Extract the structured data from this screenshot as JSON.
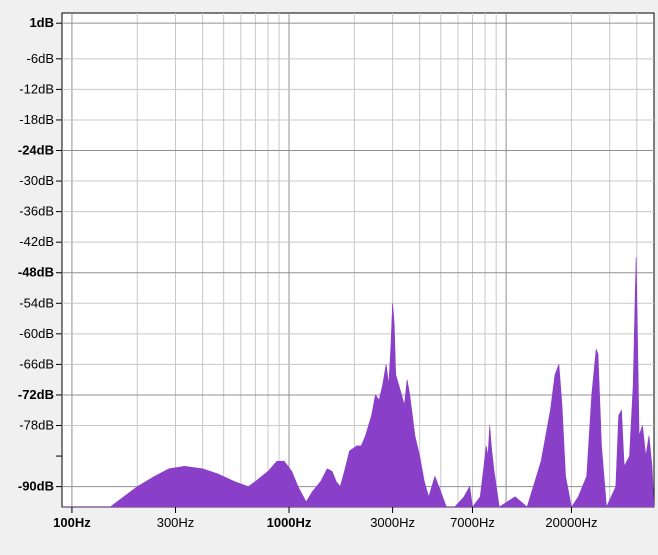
{
  "chart_data": {
    "type": "area",
    "title": "",
    "xlabel": "",
    "ylabel": "",
    "x_scale": "log",
    "xlim_hz": [
      90,
      48000
    ],
    "ylim_db": [
      -94,
      3
    ],
    "grid": true,
    "legend": "none",
    "y_ticks": [
      {
        "value": 1,
        "label": "1dB",
        "bold": true
      },
      {
        "value": -6,
        "label": "-6dB",
        "bold": false
      },
      {
        "value": -12,
        "label": "-12dB",
        "bold": false
      },
      {
        "value": -18,
        "label": "-18dB",
        "bold": false
      },
      {
        "value": -24,
        "label": "-24dB",
        "bold": true
      },
      {
        "value": -30,
        "label": "-30dB",
        "bold": false
      },
      {
        "value": -36,
        "label": "-36dB",
        "bold": false
      },
      {
        "value": -42,
        "label": "-42dB",
        "bold": false
      },
      {
        "value": -48,
        "label": "-48dB",
        "bold": true
      },
      {
        "value": -54,
        "label": "-54dB",
        "bold": false
      },
      {
        "value": -60,
        "label": "-60dB",
        "bold": false
      },
      {
        "value": -66,
        "label": "-66dB",
        "bold": false
      },
      {
        "value": -72,
        "label": "-72dB",
        "bold": true
      },
      {
        "value": -78,
        "label": "-78dB",
        "bold": false
      },
      {
        "value": -90,
        "label": "-90dB",
        "bold": true
      }
    ],
    "x_ticks": [
      {
        "value": 100,
        "label": "100Hz",
        "bold": true
      },
      {
        "value": 300,
        "label": "300Hz",
        "bold": false
      },
      {
        "value": 1000,
        "label": "1000Hz",
        "bold": true
      },
      {
        "value": 3000,
        "label": "3000Hz",
        "bold": false
      },
      {
        "value": 7000,
        "label": "7000Hz",
        "bold": false
      },
      {
        "value": 20000,
        "label": "20000Hz",
        "bold": false
      }
    ],
    "x_grid_hz": [
      200,
      300,
      400,
      500,
      600,
      700,
      800,
      900,
      2000,
      3000,
      4000,
      5000,
      6000,
      7000,
      8000,
      9000,
      20000,
      30000,
      40000
    ],
    "x_grid_major_hz": [
      100,
      1000,
      10000
    ],
    "y_minor_ticks": [
      -84
    ],
    "series": [
      {
        "color": "#8a3fc8",
        "points": [
          [
            90,
            -94
          ],
          [
            150,
            -94
          ],
          [
            200,
            -90
          ],
          [
            240,
            -88
          ],
          [
            280,
            -86.5
          ],
          [
            330,
            -86
          ],
          [
            400,
            -86.5
          ],
          [
            470,
            -87.5
          ],
          [
            560,
            -89
          ],
          [
            650,
            -90
          ],
          [
            700,
            -89
          ],
          [
            800,
            -87
          ],
          [
            880,
            -85
          ],
          [
            950,
            -85
          ],
          [
            1030,
            -87
          ],
          [
            1100,
            -90
          ],
          [
            1200,
            -93
          ],
          [
            1280,
            -91
          ],
          [
            1400,
            -89
          ],
          [
            1500,
            -86.5
          ],
          [
            1580,
            -87
          ],
          [
            1650,
            -89
          ],
          [
            1720,
            -90
          ],
          [
            1800,
            -87
          ],
          [
            1900,
            -83
          ],
          [
            2050,
            -82
          ],
          [
            2150,
            -82
          ],
          [
            2250,
            -80
          ],
          [
            2400,
            -76
          ],
          [
            2500,
            -72
          ],
          [
            2600,
            -73
          ],
          [
            2700,
            -70
          ],
          [
            2800,
            -66
          ],
          [
            2880,
            -70
          ],
          [
            2950,
            -62
          ],
          [
            3000,
            -54
          ],
          [
            3050,
            -58
          ],
          [
            3100,
            -68
          ],
          [
            3200,
            -70
          ],
          [
            3300,
            -72
          ],
          [
            3400,
            -74
          ],
          [
            3500,
            -69
          ],
          [
            3600,
            -72
          ],
          [
            3800,
            -80
          ],
          [
            4000,
            -84
          ],
          [
            4200,
            -89
          ],
          [
            4400,
            -92
          ],
          [
            4700,
            -88
          ],
          [
            5000,
            -91
          ],
          [
            5300,
            -94
          ],
          [
            5800,
            -94
          ],
          [
            6400,
            -92
          ],
          [
            6800,
            -90
          ],
          [
            7000,
            -94
          ],
          [
            7600,
            -92
          ],
          [
            7900,
            -86
          ],
          [
            8100,
            -82
          ],
          [
            8250,
            -84
          ],
          [
            8400,
            -78
          ],
          [
            8550,
            -82
          ],
          [
            8800,
            -87
          ],
          [
            9300,
            -94
          ],
          [
            11000,
            -92
          ],
          [
            12500,
            -94
          ],
          [
            14500,
            -85
          ],
          [
            16000,
            -75
          ],
          [
            16800,
            -68
          ],
          [
            17500,
            -66
          ],
          [
            18100,
            -74
          ],
          [
            18800,
            -88
          ],
          [
            20000,
            -94
          ],
          [
            21500,
            -92
          ],
          [
            23500,
            -88
          ],
          [
            24800,
            -72
          ],
          [
            26000,
            -63
          ],
          [
            26500,
            -64
          ],
          [
            27500,
            -82
          ],
          [
            29000,
            -94
          ],
          [
            32000,
            -90
          ],
          [
            33000,
            -76
          ],
          [
            34000,
            -75
          ],
          [
            35000,
            -86
          ],
          [
            37000,
            -84
          ],
          [
            38500,
            -70
          ],
          [
            39200,
            -55
          ],
          [
            39700,
            -45
          ],
          [
            40200,
            -58
          ],
          [
            41000,
            -80
          ],
          [
            42500,
            -78
          ],
          [
            44000,
            -84
          ],
          [
            45500,
            -80
          ],
          [
            47000,
            -86
          ],
          [
            48000,
            -94
          ]
        ]
      }
    ]
  }
}
